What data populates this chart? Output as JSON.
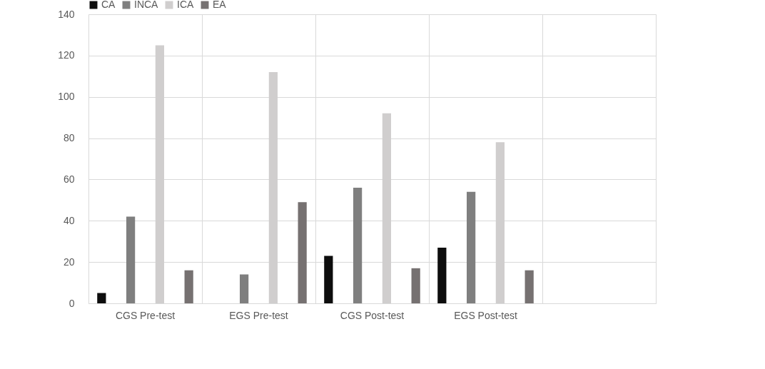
{
  "chart_data": {
    "type": "bar",
    "categories": [
      "CGS Pre-test",
      "EGS Pre-test",
      "CGS Post-test",
      "EGS Post-test",
      null
    ],
    "series": [
      {
        "name": "CA",
        "color": "#0d0d0d",
        "values": [
          5,
          0,
          23,
          27,
          null
        ]
      },
      {
        "name": "INCA",
        "color": "#7f7f7f",
        "values": [
          42,
          14,
          56,
          54,
          null
        ]
      },
      {
        "name": "ICA",
        "color": "#d0cece",
        "values": [
          125,
          112,
          92,
          78,
          null
        ]
      },
      {
        "name": "EA",
        "color": "#767171",
        "values": [
          16,
          49,
          17,
          16,
          null
        ]
      }
    ],
    "ylim": [
      0,
      140
    ],
    "yticks": [
      0,
      20,
      40,
      60,
      80,
      100,
      120,
      140
    ],
    "grid": true,
    "legend": "top"
  }
}
